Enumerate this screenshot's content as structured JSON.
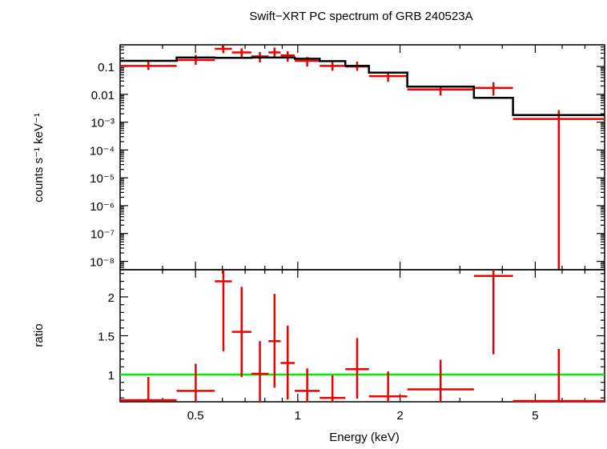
{
  "chart_data": [
    {
      "type": "scatter",
      "title": "Swift−XRT PC spectrum of GRB 240523A",
      "xlabel": "",
      "ylabel": "counts s⁻¹ keV⁻¹",
      "x_scale": "log",
      "y_scale": "log",
      "xlim": [
        0.3,
        8.0
      ],
      "ylim": [
        5e-09,
        0.6
      ],
      "y_ticks": [
        {
          "value": 0.1,
          "label": "0.1"
        },
        {
          "value": 0.01,
          "label": "0.01"
        },
        {
          "value": 0.001,
          "label": "10⁻³"
        },
        {
          "value": 0.0001,
          "label": "10⁻⁴"
        },
        {
          "value": 1e-05,
          "label": "10⁻⁵"
        },
        {
          "value": 1e-06,
          "label": "10⁻⁶"
        },
        {
          "value": 1e-07,
          "label": "10⁻⁷"
        },
        {
          "value": 1e-08,
          "label": "10⁻⁸"
        }
      ],
      "series": [
        {
          "kind": "data",
          "color": "#ee0000",
          "points": [
            {
              "x0": 0.3,
              "x1": 0.44,
              "y": 0.105,
              "ylo": 0.075,
              "yhi": 0.16
            },
            {
              "x0": 0.44,
              "x1": 0.57,
              "y": 0.17,
              "ylo": 0.115,
              "yhi": 0.26
            },
            {
              "x0": 0.57,
              "x1": 0.64,
              "y": 0.43,
              "ylo": 0.3,
              "yhi": 0.6
            },
            {
              "x0": 0.64,
              "x1": 0.73,
              "y": 0.32,
              "ylo": 0.2,
              "yhi": 0.45
            },
            {
              "x0": 0.73,
              "x1": 0.82,
              "y": 0.23,
              "ylo": 0.14,
              "yhi": 0.33
            },
            {
              "x0": 0.82,
              "x1": 0.89,
              "y": 0.32,
              "ylo": 0.22,
              "yhi": 0.48
            },
            {
              "x0": 0.89,
              "x1": 0.98,
              "y": 0.25,
              "ylo": 0.15,
              "yhi": 0.35
            },
            {
              "x0": 0.98,
              "x1": 1.16,
              "y": 0.16,
              "ylo": 0.1,
              "yhi": 0.22
            },
            {
              "x0": 1.16,
              "x1": 1.38,
              "y": 0.105,
              "ylo": 0.07,
              "yhi": 0.15
            },
            {
              "x0": 1.38,
              "x1": 1.62,
              "y": 0.1,
              "ylo": 0.07,
              "yhi": 0.15
            },
            {
              "x0": 1.62,
              "x1": 2.1,
              "y": 0.045,
              "ylo": 0.028,
              "yhi": 0.065
            },
            {
              "x0": 2.1,
              "x1": 3.3,
              "y": 0.015,
              "ylo": 0.009,
              "yhi": 0.02
            },
            {
              "x0": 3.3,
              "x1": 4.3,
              "y": 0.017,
              "ylo": 0.009,
              "yhi": 0.027
            },
            {
              "x0": 4.3,
              "x1": 8.0,
              "y": 0.0013,
              "ylo": 5e-09,
              "yhi": 0.0027
            }
          ]
        },
        {
          "kind": "model",
          "color": "#000000",
          "steps": [
            {
              "x0": 0.3,
              "x1": 0.44,
              "y": 0.16
            },
            {
              "x0": 0.44,
              "x1": 0.57,
              "y": 0.21
            },
            {
              "x0": 0.57,
              "x1": 0.73,
              "y": 0.205
            },
            {
              "x0": 0.73,
              "x1": 0.98,
              "y": 0.21
            },
            {
              "x0": 0.98,
              "x1": 1.16,
              "y": 0.19
            },
            {
              "x0": 1.16,
              "x1": 1.38,
              "y": 0.155
            },
            {
              "x0": 1.38,
              "x1": 1.62,
              "y": 0.105
            },
            {
              "x0": 1.62,
              "x1": 2.1,
              "y": 0.06
            },
            {
              "x0": 2.1,
              "x1": 3.3,
              "y": 0.019
            },
            {
              "x0": 3.3,
              "x1": 4.3,
              "y": 0.0075
            },
            {
              "x0": 4.3,
              "x1": 8.0,
              "y": 0.0018
            }
          ]
        }
      ]
    },
    {
      "type": "scatter",
      "title": "",
      "xlabel": "Energy (keV)",
      "ylabel": "ratio",
      "x_scale": "log",
      "y_scale": "linear",
      "xlim": [
        0.3,
        8.0
      ],
      "ylim": [
        0.65,
        2.35
      ],
      "y_ticks": [
        {
          "value": 1,
          "label": "1"
        },
        {
          "value": 1.5,
          "label": "1.5"
        },
        {
          "value": 2,
          "label": "2"
        }
      ],
      "x_ticks": [
        {
          "value": 0.5,
          "label": "0.5"
        },
        {
          "value": 1,
          "label": "1"
        },
        {
          "value": 2,
          "label": "2"
        },
        {
          "value": 5,
          "label": "5"
        }
      ],
      "reference_line": {
        "y": 1,
        "color": "#00ee00"
      },
      "series": [
        {
          "kind": "data",
          "color": "#ee0000",
          "points": [
            {
              "x0": 0.3,
              "x1": 0.44,
              "y": 0.67,
              "ylo": 0.65,
              "yhi": 0.97
            },
            {
              "x0": 0.44,
              "x1": 0.57,
              "y": 0.79,
              "ylo": 0.65,
              "yhi": 1.14
            },
            {
              "x0": 0.57,
              "x1": 0.64,
              "y": 2.2,
              "ylo": 1.3,
              "yhi": 2.35
            },
            {
              "x0": 0.64,
              "x1": 0.73,
              "y": 1.55,
              "ylo": 0.97,
              "yhi": 2.13
            },
            {
              "x0": 0.73,
              "x1": 0.82,
              "y": 1.01,
              "ylo": 0.65,
              "yhi": 1.43
            },
            {
              "x0": 0.82,
              "x1": 0.89,
              "y": 1.43,
              "ylo": 0.83,
              "yhi": 2.04
            },
            {
              "x0": 0.89,
              "x1": 0.98,
              "y": 1.15,
              "ylo": 0.68,
              "yhi": 1.63
            },
            {
              "x0": 0.98,
              "x1": 1.16,
              "y": 0.79,
              "ylo": 0.65,
              "yhi": 1.08
            },
            {
              "x0": 1.16,
              "x1": 1.38,
              "y": 0.7,
              "ylo": 0.65,
              "yhi": 0.99
            },
            {
              "x0": 1.38,
              "x1": 1.62,
              "y": 1.07,
              "ylo": 0.69,
              "yhi": 1.47
            },
            {
              "x0": 1.62,
              "x1": 2.1,
              "y": 0.72,
              "ylo": 0.65,
              "yhi": 1.04
            },
            {
              "x0": 2.1,
              "x1": 3.3,
              "y": 0.81,
              "ylo": 0.65,
              "yhi": 1.19
            },
            {
              "x0": 3.3,
              "x1": 4.3,
              "y": 2.27,
              "ylo": 1.26,
              "yhi": 2.35
            },
            {
              "x0": 4.3,
              "x1": 8.0,
              "y": 0.66,
              "ylo": 0.65,
              "yhi": 1.33
            }
          ]
        }
      ]
    }
  ]
}
